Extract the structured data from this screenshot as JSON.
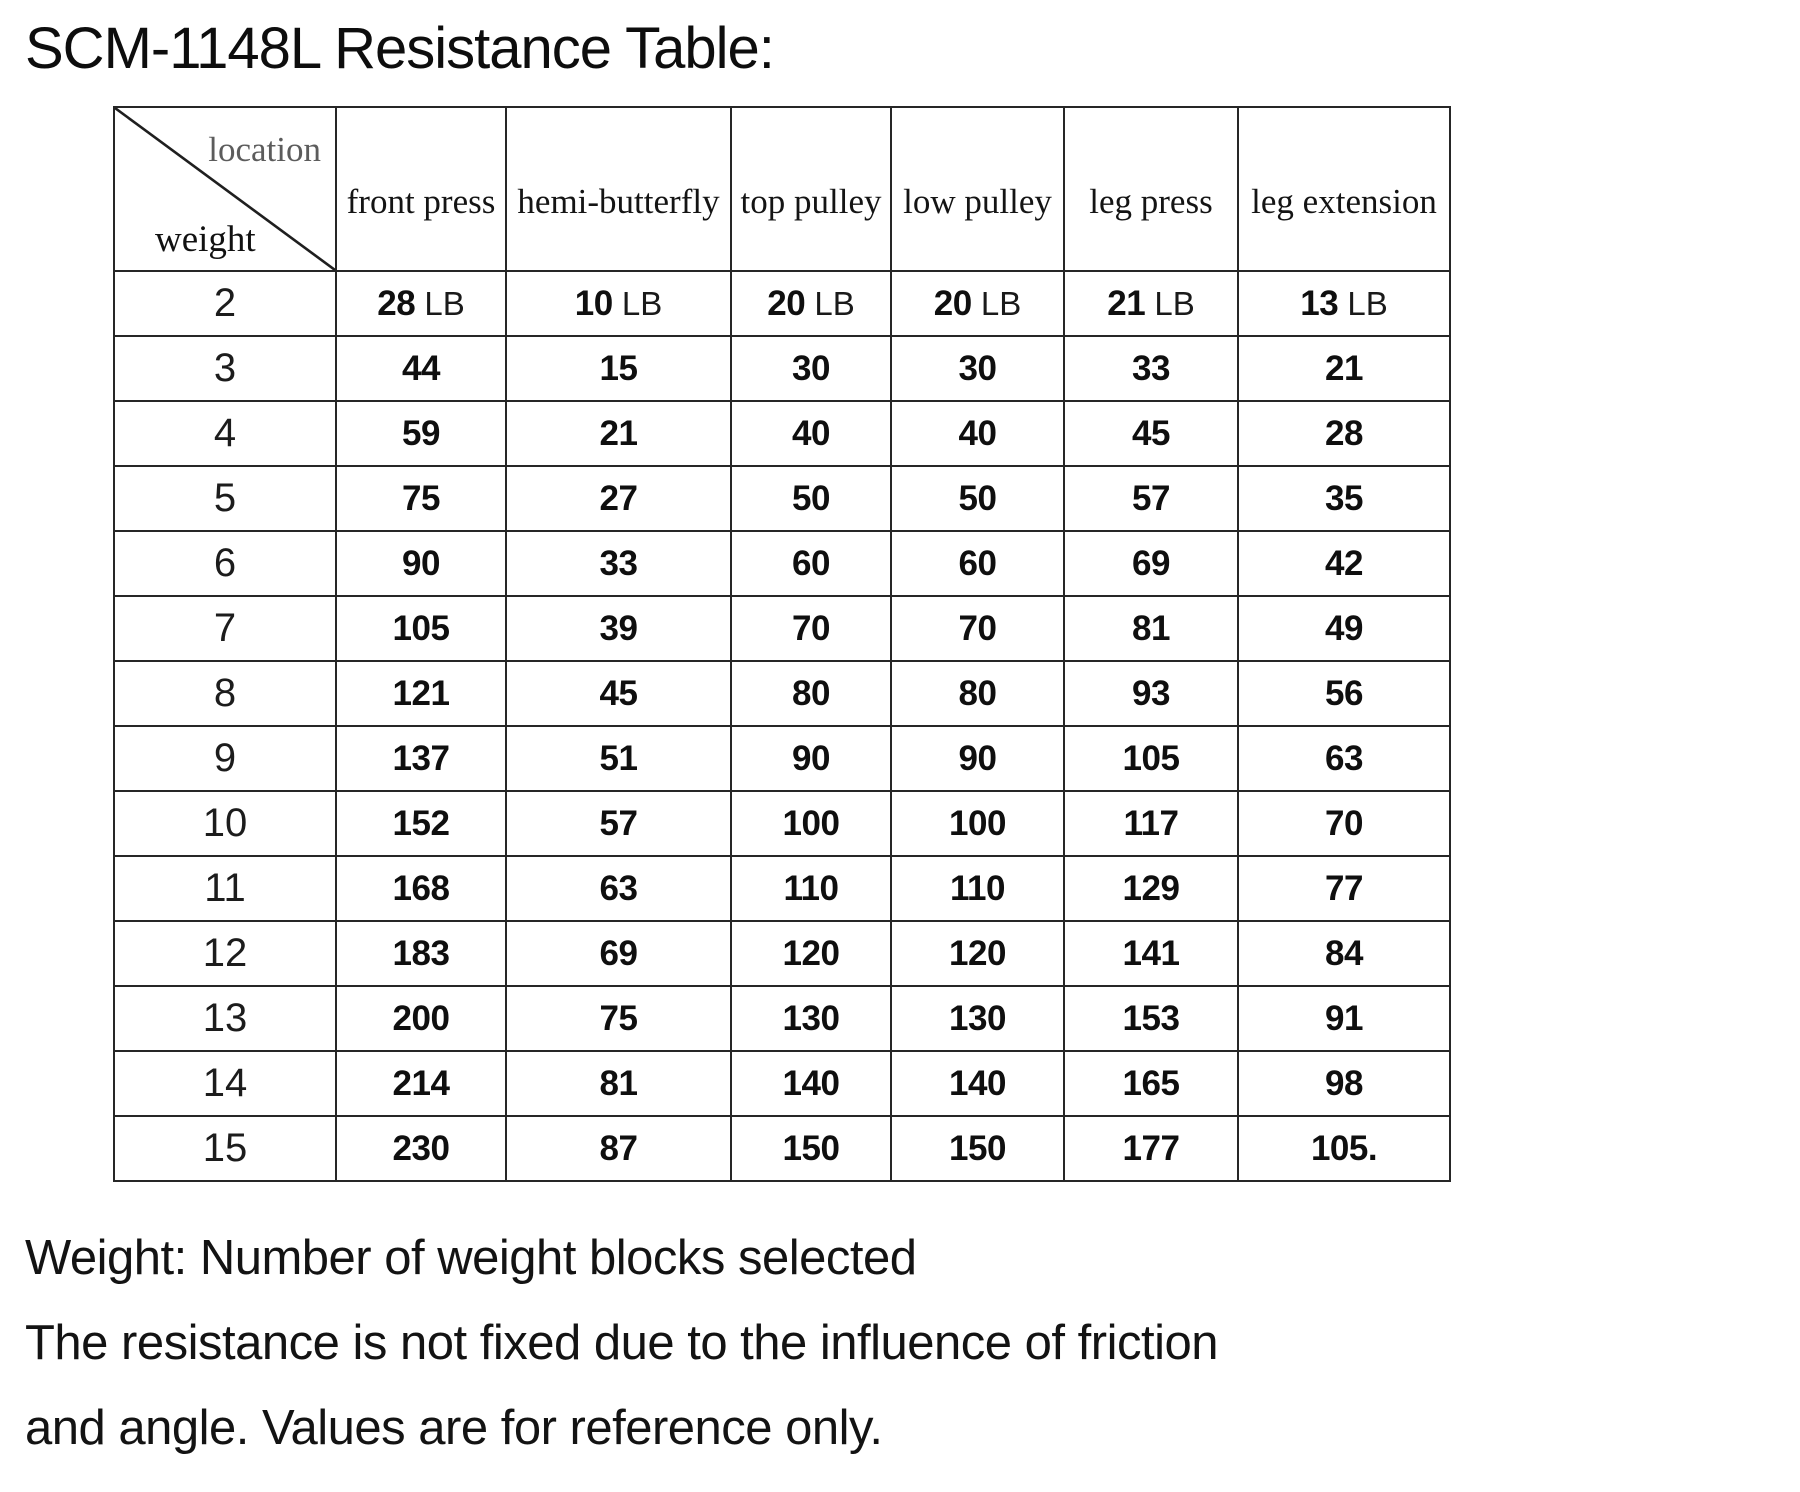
{
  "title": "SCM-1148L Resistance Table:",
  "table": {
    "corner": {
      "top_label": "location",
      "bottom_label": "weight"
    },
    "columns": [
      "front press",
      "hemi-butterfly",
      "top pulley",
      "low pulley",
      "leg press",
      "leg extension"
    ],
    "unit": "LB",
    "rows": [
      {
        "weight": "2",
        "show_unit": true,
        "values": [
          "28",
          "10",
          "20",
          "20",
          "21",
          "13"
        ]
      },
      {
        "weight": "3",
        "show_unit": false,
        "values": [
          "44",
          "15",
          "30",
          "30",
          "33",
          "21"
        ]
      },
      {
        "weight": "4",
        "show_unit": false,
        "values": [
          "59",
          "21",
          "40",
          "40",
          "45",
          "28"
        ]
      },
      {
        "weight": "5",
        "show_unit": false,
        "values": [
          "75",
          "27",
          "50",
          "50",
          "57",
          "35"
        ]
      },
      {
        "weight": "6",
        "show_unit": false,
        "values": [
          "90",
          "33",
          "60",
          "60",
          "69",
          "42"
        ]
      },
      {
        "weight": "7",
        "show_unit": false,
        "values": [
          "105",
          "39",
          "70",
          "70",
          "81",
          "49"
        ]
      },
      {
        "weight": "8",
        "show_unit": false,
        "values": [
          "121",
          "45",
          "80",
          "80",
          "93",
          "56"
        ]
      },
      {
        "weight": "9",
        "show_unit": false,
        "values": [
          "137",
          "51",
          "90",
          "90",
          "105",
          "63"
        ]
      },
      {
        "weight": "10",
        "show_unit": false,
        "values": [
          "152",
          "57",
          "100",
          "100",
          "117",
          "70"
        ]
      },
      {
        "weight": "11",
        "show_unit": false,
        "values": [
          "168",
          "63",
          "110",
          "110",
          "129",
          "77"
        ]
      },
      {
        "weight": "12",
        "show_unit": false,
        "values": [
          "183",
          "69",
          "120",
          "120",
          "141",
          "84"
        ]
      },
      {
        "weight": "13",
        "show_unit": false,
        "values": [
          "200",
          "75",
          "130",
          "130",
          "153",
          "91"
        ]
      },
      {
        "weight": "14",
        "show_unit": false,
        "values": [
          "214",
          "81",
          "140",
          "140",
          "165",
          "98"
        ]
      },
      {
        "weight": "15",
        "show_unit": false,
        "values": [
          "230",
          "87",
          "150",
          "150",
          "177",
          "105."
        ]
      }
    ]
  },
  "notes": [
    "Weight: Number of weight blocks selected",
    "The resistance is not fixed due to the influence of friction",
    "and angle. Values are for reference only."
  ]
}
